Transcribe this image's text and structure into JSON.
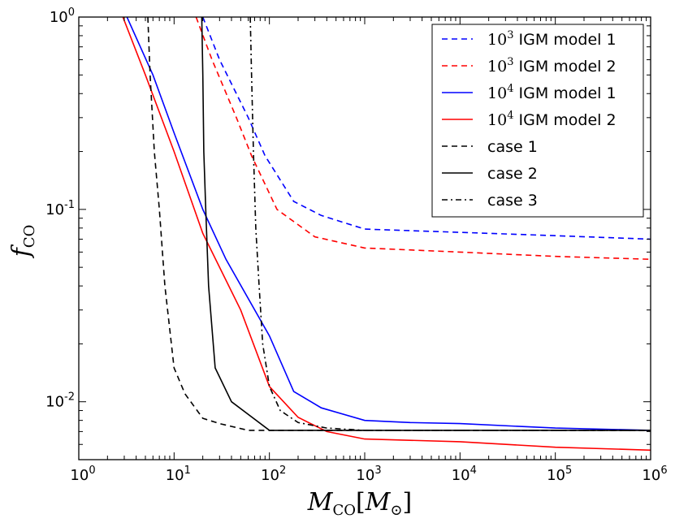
{
  "chart_data": {
    "type": "line",
    "xscale": "log",
    "yscale": "log",
    "xlim": [
      1,
      1000000
    ],
    "ylim": [
      0.005,
      1
    ],
    "xlabel": {
      "base": "M",
      "sub": "CO",
      "bracket_base": "M",
      "bracket_sub": "⊙"
    },
    "ylabel": {
      "base": "f",
      "sub": "CO"
    },
    "x_ticks": [
      {
        "value": 1,
        "base": "10",
        "exp": "0"
      },
      {
        "value": 10,
        "base": "10",
        "exp": "1"
      },
      {
        "value": 100,
        "base": "10",
        "exp": "2"
      },
      {
        "value": 1000,
        "base": "10",
        "exp": "3"
      },
      {
        "value": 10000,
        "base": "10",
        "exp": "4"
      },
      {
        "value": 100000,
        "base": "10",
        "exp": "5"
      },
      {
        "value": 1000000,
        "base": "10",
        "exp": "6"
      }
    ],
    "y_ticks": [
      {
        "value": 1,
        "base": "10",
        "exp": "0"
      },
      {
        "value": 0.1,
        "base": "10",
        "exp": "-1"
      },
      {
        "value": 0.01,
        "base": "10",
        "exp": "-2"
      }
    ],
    "legend_position": "top-right",
    "series": [
      {
        "name": "10^3 IGM model 1",
        "legend_base": "10",
        "legend_exp": "3",
        "legend_text": "IGM model 1",
        "color": "#0000ff",
        "style": "dashed",
        "x": [
          20,
          30,
          60,
          90,
          180,
          350,
          1000,
          10000,
          100000,
          1000000
        ],
        "y": [
          1.0,
          0.6,
          0.3,
          0.19,
          0.11,
          0.093,
          0.079,
          0.076,
          0.073,
          0.07
        ]
      },
      {
        "name": "10^3 IGM model 2",
        "legend_base": "10",
        "legend_exp": "3",
        "legend_text": "IGM model 2",
        "color": "#ff0000",
        "style": "dashed",
        "x": [
          17,
          25,
          45,
          65,
          120,
          300,
          1000,
          10000,
          100000,
          1000000
        ],
        "y": [
          1.0,
          0.6,
          0.3,
          0.19,
          0.1,
          0.072,
          0.063,
          0.06,
          0.057,
          0.055
        ]
      },
      {
        "name": "10^4 IGM model 1",
        "legend_base": "10",
        "legend_exp": "4",
        "legend_text": "IGM model 1",
        "color": "#0000ff",
        "style": "solid",
        "x": [
          3.2,
          6,
          10,
          20,
          35,
          100,
          180,
          350,
          1000,
          3000,
          10000,
          100000,
          1000000
        ],
        "y": [
          1.0,
          0.5,
          0.25,
          0.1,
          0.055,
          0.022,
          0.0113,
          0.0093,
          0.008,
          0.0078,
          0.0077,
          0.0073,
          0.0071
        ]
      },
      {
        "name": "10^4 IGM model 2",
        "legend_base": "10",
        "legend_exp": "4",
        "legend_text": "IGM model 2",
        "color": "#ff0000",
        "style": "solid",
        "x": [
          2.9,
          5,
          10,
          20,
          50,
          100,
          200,
          400,
          1000,
          10000,
          100000,
          1000000
        ],
        "y": [
          1.0,
          0.5,
          0.2,
          0.075,
          0.03,
          0.012,
          0.0083,
          0.007,
          0.0064,
          0.0062,
          0.0058,
          0.0056
        ]
      },
      {
        "name": "case 1",
        "legend_text": "case 1",
        "color": "#000000",
        "style": "dashed",
        "x": [
          5.3,
          5.6,
          6.2,
          7,
          8,
          10,
          13,
          20,
          30,
          60,
          100,
          1000,
          1000000
        ],
        "y": [
          1.0,
          0.5,
          0.2,
          0.1,
          0.04,
          0.015,
          0.011,
          0.0082,
          0.0077,
          0.0071,
          0.0071,
          0.0071,
          0.0071
        ]
      },
      {
        "name": "case 2",
        "legend_text": "case 2",
        "color": "#000000",
        "style": "solid",
        "x": [
          19.5,
          20,
          20.5,
          21.5,
          23,
          27,
          40,
          100,
          1000,
          1000000
        ],
        "y": [
          1.0,
          0.5,
          0.2,
          0.1,
          0.04,
          0.015,
          0.01,
          0.0071,
          0.0071,
          0.0071
        ]
      },
      {
        "name": "case 3",
        "legend_text": "case 3",
        "color": "#000000",
        "style": "dashdot",
        "x": [
          63,
          65,
          68,
          72,
          78,
          85,
          100,
          130,
          200,
          400,
          1000,
          1000000
        ],
        "y": [
          1.0,
          0.5,
          0.2,
          0.08,
          0.04,
          0.02,
          0.012,
          0.009,
          0.0078,
          0.0073,
          0.0071,
          0.0071
        ]
      }
    ]
  }
}
